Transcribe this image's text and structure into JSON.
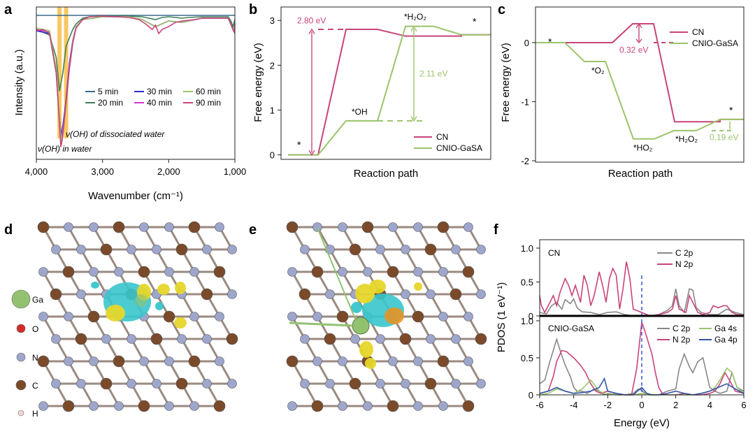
{
  "colors": {
    "cn": "#c8447a",
    "gasa": "#9bc46a",
    "t5": "#3a6b8a",
    "t20": "#3f7f5a",
    "t30": "#2a2ad0",
    "t40": "#d236d6",
    "t60": "#9bc46a",
    "t90": "#c8447a",
    "highlight": "#f7b52c",
    "carbon": "#7a4a2a",
    "nitrogen": "#9ea6cc",
    "oxygen": "#d42a2a",
    "gallium": "#92c270",
    "hydrogen": "#f2d6d6",
    "cdd_yellow": "#e6d62a",
    "cdd_cyan": "#38c6cc",
    "cdd_orange": "#f0901a",
    "gray": "#888888",
    "blue": "#3355aa",
    "dashed_zero": "#3355cc"
  },
  "panels": {
    "a": "a",
    "b": "b",
    "c": "c",
    "d": "d",
    "e": "e",
    "f": "f"
  },
  "chart_data": [
    {
      "panel": "a",
      "type": "line",
      "xlabel": "Wavenumber (cm⁻¹)",
      "ylabel": "Intensity (a.u.)",
      "xlim": [
        4000,
        1000
      ],
      "xticks": [
        "4,000",
        "3,000",
        "2,000",
        "1,000"
      ],
      "xtick_values": [
        4000,
        3000,
        2000,
        1000
      ],
      "highlights": [
        3650,
        3550
      ],
      "annotations": [
        "ν(OH) of dissociated water",
        "ν(OH) in water"
      ],
      "series": [
        {
          "name": "5 min",
          "color_key": "t5",
          "x": [
            4000,
            3800,
            3700,
            3600,
            3500,
            3400,
            3200,
            3000,
            2500,
            2000,
            1800,
            1500,
            1200,
            1100,
            1050,
            1000
          ],
          "y": [
            0.96,
            0.96,
            0.96,
            0.96,
            0.96,
            0.96,
            0.96,
            0.96,
            0.96,
            0.96,
            0.96,
            0.96,
            0.96,
            0.96,
            0.96,
            0.96
          ]
        },
        {
          "name": "20 min",
          "color_key": "t20",
          "x": [
            4000,
            3900,
            3800,
            3700,
            3650,
            3600,
            3550,
            3500,
            3450,
            3400,
            3300,
            3200,
            3000,
            2800,
            2600,
            2400,
            2300,
            2200,
            2100,
            2000,
            1900,
            1800,
            1700,
            1500,
            1300,
            1100,
            1060,
            1030,
            1000
          ],
          "y": [
            0.86,
            0.84,
            0.82,
            0.66,
            0.42,
            0.55,
            0.74,
            0.8,
            0.86,
            0.9,
            0.94,
            0.95,
            0.955,
            0.955,
            0.955,
            0.95,
            0.94,
            0.93,
            0.945,
            0.95,
            0.945,
            0.94,
            0.945,
            0.95,
            0.95,
            0.95,
            0.92,
            0.88,
            0.93
          ]
        },
        {
          "name": "30 min",
          "color_key": "t30",
          "x": [
            4000,
            3800,
            3700,
            3660,
            3620,
            3560,
            3500,
            3450,
            3400,
            3300,
            3000,
            2600,
            2400,
            2200,
            2000,
            1800,
            1500,
            1100,
            1030,
            1000
          ],
          "y": [
            0.85,
            0.83,
            0.55,
            0.28,
            0.1,
            0.32,
            0.62,
            0.78,
            0.88,
            0.93,
            0.95,
            0.95,
            0.93,
            0.88,
            0.92,
            0.91,
            0.94,
            0.94,
            0.86,
            0.9
          ]
        },
        {
          "name": "40 min",
          "color_key": "t40",
          "x": [
            4000,
            3800,
            3700,
            3660,
            3620,
            3560,
            3500,
            3450,
            3400,
            3300,
            3000,
            2600,
            2400,
            2200,
            2000,
            1800,
            1500,
            1100,
            1030,
            1000
          ],
          "y": [
            0.86,
            0.84,
            0.56,
            0.3,
            0.06,
            0.3,
            0.6,
            0.78,
            0.88,
            0.93,
            0.95,
            0.95,
            0.93,
            0.88,
            0.92,
            0.91,
            0.94,
            0.94,
            0.86,
            0.9
          ]
        },
        {
          "name": "60 min",
          "color_key": "t60",
          "x": [
            4000,
            3800,
            3700,
            3660,
            3620,
            3560,
            3500,
            3450,
            3400,
            3300,
            3000,
            2600,
            2400,
            2200,
            2000,
            1800,
            1500,
            1100,
            1030,
            1000
          ],
          "y": [
            0.87,
            0.85,
            0.58,
            0.32,
            0.04,
            0.28,
            0.58,
            0.77,
            0.88,
            0.93,
            0.95,
            0.95,
            0.93,
            0.88,
            0.92,
            0.91,
            0.94,
            0.94,
            0.86,
            0.9
          ]
        },
        {
          "name": "90 min",
          "color_key": "t90",
          "x": [
            4000,
            3900,
            3800,
            3700,
            3660,
            3630,
            3600,
            3560,
            3500,
            3450,
            3400,
            3300,
            3200,
            3000,
            2800,
            2600,
            2450,
            2350,
            2300,
            2250,
            2200,
            2150,
            2100,
            2000,
            1900,
            1800,
            1700,
            1600,
            1500,
            1300,
            1100,
            1060,
            1030,
            1010,
            1000
          ],
          "y": [
            0.85,
            0.86,
            0.83,
            0.55,
            0.25,
            0.02,
            0.1,
            0.3,
            0.58,
            0.76,
            0.87,
            0.93,
            0.95,
            0.955,
            0.95,
            0.945,
            0.93,
            0.9,
            0.88,
            0.86,
            0.89,
            0.83,
            0.86,
            0.88,
            0.91,
            0.92,
            0.925,
            0.93,
            0.94,
            0.94,
            0.94,
            0.9,
            0.86,
            0.84,
            0.9
          ]
        }
      ]
    },
    {
      "panel": "b",
      "type": "line",
      "xlabel": "Reaction path",
      "ylabel": "Free energy (eV)",
      "ylim": [
        -0.1,
        3.3
      ],
      "yticks": [
        0,
        1,
        2,
        3
      ],
      "steps": [
        "*",
        "*OH",
        "*H₂O₂",
        "*"
      ],
      "annotations": [
        "2.80 eV",
        "2.11 eV"
      ],
      "series": [
        {
          "name": "CN",
          "color_key": "cn",
          "levels": [
            0,
            2.8,
            2.65,
            2.68
          ]
        },
        {
          "name": "CNIO-GaSA",
          "color_key": "gasa",
          "levels": [
            0,
            0.76,
            2.87,
            2.68
          ]
        }
      ]
    },
    {
      "panel": "c",
      "type": "line",
      "xlabel": "Reaction path",
      "ylabel": "Free energy (eV)",
      "ylim": [
        -2.0,
        0.2
      ],
      "yticks": [
        0,
        -1,
        -2
      ],
      "steps": [
        "*",
        "*O₂",
        "*HO₂",
        "*H₂O₂",
        "*"
      ],
      "annotations": [
        "0.32 eV",
        "0.19 eV"
      ],
      "series": [
        {
          "name": "CN",
          "color_key": "cn",
          "levels": [
            0,
            0,
            0.32,
            -1.34,
            -1.3
          ]
        },
        {
          "name": "CNIO-GaSA",
          "color_key": "gasa",
          "levels": [
            0,
            -0.32,
            -1.63,
            -1.49,
            -1.3
          ]
        }
      ]
    },
    {
      "panel": "f",
      "type": "line",
      "xlabel": "Energy (eV)",
      "ylabel": "PDOS (1 eV⁻¹)",
      "xlim": [
        -6,
        6
      ],
      "xticks": [
        -6,
        -4,
        -2,
        0,
        2,
        4,
        6
      ],
      "ylim": [
        0,
        1.0
      ],
      "yticks": [
        "0",
        "0.5",
        "1.0"
      ],
      "subplots": [
        {
          "title": "CN",
          "series": [
            {
              "name": "C 2p",
              "color_key": "gray",
              "x": [
                -6,
                -5.6,
                -5.3,
                -5.0,
                -4.7,
                -4.5,
                -4.2,
                -4.0,
                -3.8,
                -3.5,
                -3.0,
                -2.5,
                -2.0,
                -1.5,
                -1.0,
                -0.5,
                0.5,
                1.0,
                1.5,
                1.8,
                2.0,
                2.2,
                2.5,
                2.8,
                3.0,
                3.2,
                3.5,
                4.0,
                4.5,
                5.0,
                5.5,
                6
              ],
              "y": [
                0.05,
                0.03,
                0.15,
                0.2,
                0.1,
                0.24,
                0.18,
                0.25,
                0.12,
                0.06,
                0.05,
                0.02,
                0.05,
                0.06,
                0.02,
                0.0,
                0.0,
                0.02,
                0.08,
                0.15,
                0.4,
                0.15,
                0.05,
                0.4,
                0.38,
                0.12,
                0.05,
                0.02,
                0.02,
                0.1,
                0.05,
                0.02
              ]
            },
            {
              "name": "N 2p",
              "color_key": "cn",
              "x": [
                -6,
                -5.9,
                -5.7,
                -5.5,
                -5.2,
                -5.0,
                -4.8,
                -4.5,
                -4.3,
                -4.1,
                -3.9,
                -3.6,
                -3.4,
                -3.2,
                -3.0,
                -2.8,
                -2.5,
                -2.3,
                -2.1,
                -1.9,
                -1.7,
                -1.5,
                -1.3,
                -1.1,
                -0.9,
                -0.7,
                -0.5,
                0.5,
                1.0,
                1.5,
                1.8,
                2.0,
                2.2,
                2.6,
                2.8,
                3.0,
                3.3,
                3.6,
                4.0,
                4.2,
                4.5,
                4.8,
                5.0,
                5.3,
                5.6,
                6
              ],
              "y": [
                0.3,
                0.15,
                0.05,
                0.15,
                0.3,
                0.15,
                0.35,
                0.55,
                0.45,
                0.3,
                0.45,
                0.2,
                0.6,
                0.45,
                0.15,
                0.3,
                0.65,
                0.45,
                0.2,
                0.55,
                0.7,
                0.6,
                0.1,
                0.4,
                0.8,
                0.55,
                0.1,
                0.0,
                0.02,
                0.05,
                0.1,
                0.3,
                0.1,
                0.05,
                0.3,
                0.2,
                0.05,
                0.02,
                0.05,
                0.15,
                0.12,
                0.15,
                0.15,
                0.05,
                0.02,
                0.01
              ]
            }
          ]
        },
        {
          "title": "CNIO-GaSA",
          "series": [
            {
              "name": "C 2p",
              "color_key": "gray",
              "x": [
                -6,
                -5.7,
                -5.4,
                -5.2,
                -5.0,
                -4.8,
                -4.5,
                -4.2,
                -4.0,
                -3.8,
                -3.5,
                -3.2,
                -3.0,
                -2.8,
                -2.5,
                -2.2,
                -2.0,
                -1.5,
                -1.0,
                -0.5,
                -0.2,
                0,
                0.2,
                0.5,
                1.0,
                1.5,
                2.0,
                2.2,
                2.5,
                2.8,
                3.0,
                3.3,
                3.6,
                4.0,
                4.3,
                4.6,
                5.0,
                5.3,
                5.6,
                6
              ],
              "y": [
                0.15,
                0.2,
                0.45,
                0.6,
                0.75,
                0.6,
                0.4,
                0.25,
                0.1,
                0.05,
                0.05,
                0.02,
                0.05,
                0.08,
                0.05,
                0.0,
                0.02,
                0.0,
                0.0,
                0.02,
                0.08,
                0.06,
                0.02,
                0.0,
                0.0,
                0.05,
                0.08,
                0.35,
                0.55,
                0.38,
                0.3,
                0.45,
                0.5,
                0.1,
                0.05,
                0.02,
                0.05,
                0.3,
                0.1,
                0.05
              ]
            },
            {
              "name": "N 2p",
              "color_key": "cn",
              "x": [
                -6,
                -5.5,
                -5.2,
                -5.0,
                -4.7,
                -4.4,
                -4.0,
                -3.6,
                -3.3,
                -3.0,
                -2.7,
                -2.4,
                -2.0,
                -1.5,
                -1.0,
                -0.6,
                -0.3,
                0,
                0.2,
                0.4,
                0.6,
                0.8,
                1.0,
                1.2,
                1.5,
                2.0,
                2.5,
                3.0,
                3.5,
                4.0,
                4.3,
                4.6,
                4.9,
                5.2,
                5.5,
                6
              ],
              "y": [
                0.02,
                0.05,
                0.25,
                0.45,
                0.6,
                0.58,
                0.5,
                0.4,
                0.3,
                0.15,
                0.05,
                0.02,
                0.05,
                0.02,
                0.0,
                0.0,
                0.35,
                0.98,
                0.85,
                0.7,
                0.55,
                0.3,
                0.1,
                0.02,
                0.0,
                0.0,
                0.02,
                0.0,
                0.0,
                0.02,
                0.05,
                0.15,
                0.3,
                0.18,
                0.05,
                0.02
              ]
            },
            {
              "name": "Ga 4s",
              "color_key": "gasa",
              "x": [
                -6,
                -5.5,
                -5.0,
                -4.5,
                -4.0,
                -3.5,
                -3.0,
                -2.5,
                -2.0,
                -1.5,
                -1.0,
                -0.5,
                0,
                0.5,
                1.0,
                1.5,
                2.0,
                2.5,
                3.0,
                3.5,
                4.0,
                4.3,
                4.6,
                5.0,
                5.3,
                5.6,
                6
              ],
              "y": [
                0.0,
                0.02,
                0.08,
                0.05,
                0.02,
                0.08,
                0.2,
                0.05,
                0.0,
                0.02,
                0.0,
                0.0,
                0.02,
                0.0,
                0.0,
                0.0,
                0.0,
                0.0,
                0.0,
                0.02,
                0.05,
                0.1,
                0.2,
                0.36,
                0.3,
                0.1,
                0.02
              ]
            },
            {
              "name": "Ga 4p",
              "color_key": "blue",
              "x": [
                -6,
                -5.5,
                -5.0,
                -4.5,
                -4.0,
                -3.5,
                -3.0,
                -2.5,
                -2.2,
                -2.0,
                -1.5,
                -1.0,
                -0.5,
                0,
                0.3,
                0.6,
                1.0,
                1.5,
                2.0,
                2.5,
                3.0,
                3.5,
                4.0,
                4.5,
                5.0,
                5.5,
                6
              ],
              "y": [
                0.02,
                0.05,
                0.1,
                0.05,
                0.02,
                0.03,
                0.05,
                0.1,
                0.22,
                0.05,
                0.02,
                0.0,
                0.0,
                0.1,
                0.02,
                0.0,
                0.0,
                0.02,
                0.05,
                0.02,
                0.0,
                0.02,
                0.05,
                0.1,
                0.15,
                0.08,
                0.02
              ]
            }
          ]
        }
      ]
    }
  ],
  "molecules": {
    "legend": [
      {
        "label": "Ga",
        "color_key": "gallium"
      },
      {
        "label": "O",
        "color_key": "oxygen"
      },
      {
        "label": "N",
        "color_key": "nitrogen"
      },
      {
        "label": "C",
        "color_key": "carbon"
      },
      {
        "label": "H",
        "color_key": "hydrogen"
      }
    ]
  }
}
